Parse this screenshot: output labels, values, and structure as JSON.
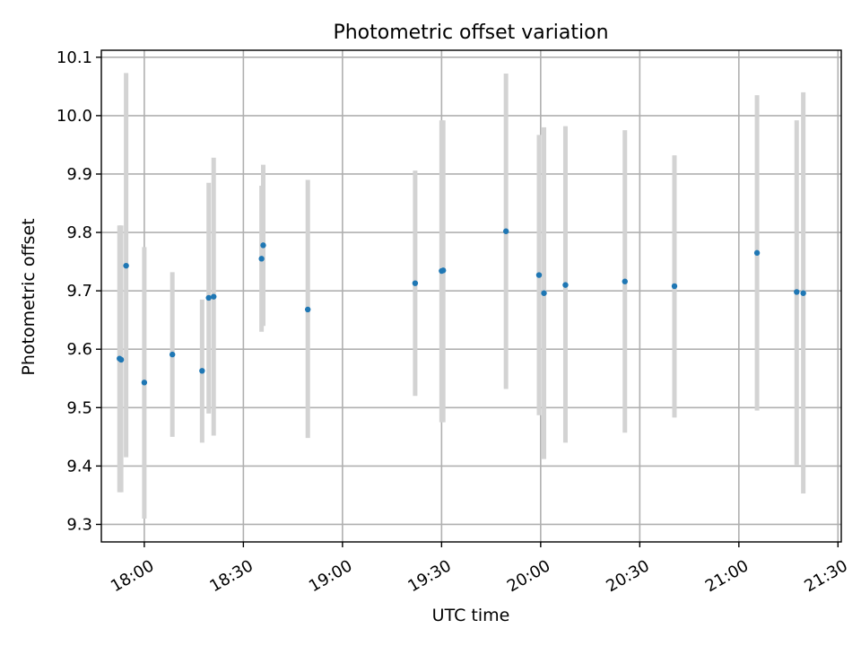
{
  "chart_data": {
    "type": "scatter",
    "title": "Photometric offset variation",
    "xlabel": "UTC time",
    "ylabel": "Photometric offset",
    "xlim": [
      "17:47",
      "21:31"
    ],
    "ylim": [
      9.27,
      10.112
    ],
    "xticks": [
      "18:00",
      "18:30",
      "19:00",
      "19:30",
      "20:00",
      "20:30",
      "21:00",
      "21:30"
    ],
    "yticks": [
      "9.3",
      "9.4",
      "9.5",
      "9.6",
      "9.7",
      "9.8",
      "9.9",
      "10.0",
      "10.1"
    ],
    "grid": true,
    "marker_color": "#1f77b4",
    "errorbar_color": "#d3d3d3",
    "points": [
      {
        "t": "17:54:30",
        "y": 9.743,
        "ylo": 9.415,
        "yhi": 10.073
      },
      {
        "t": "17:52:30",
        "y": 9.584,
        "ylo": 9.355,
        "yhi": 9.812
      },
      {
        "t": "17:53:00",
        "y": 9.582,
        "ylo": 9.355,
        "yhi": 9.812
      },
      {
        "t": "18:00:00",
        "y": 9.543,
        "ylo": 9.31,
        "yhi": 9.775
      },
      {
        "t": "18:08:30",
        "y": 9.591,
        "ylo": 9.45,
        "yhi": 9.732
      },
      {
        "t": "18:17:30",
        "y": 9.563,
        "ylo": 9.44,
        "yhi": 9.685
      },
      {
        "t": "18:19:30",
        "y": 9.688,
        "ylo": 9.49,
        "yhi": 9.885
      },
      {
        "t": "18:21:00",
        "y": 9.69,
        "ylo": 9.452,
        "yhi": 9.928
      },
      {
        "t": "18:35:30",
        "y": 9.755,
        "ylo": 9.63,
        "yhi": 9.88
      },
      {
        "t": "18:36:00",
        "y": 9.778,
        "ylo": 9.64,
        "yhi": 9.916
      },
      {
        "t": "18:49:30",
        "y": 9.668,
        "ylo": 9.448,
        "yhi": 9.89
      },
      {
        "t": "19:22:00",
        "y": 9.713,
        "ylo": 9.52,
        "yhi": 9.906
      },
      {
        "t": "19:30:00",
        "y": 9.734,
        "ylo": 9.475,
        "yhi": 9.992
      },
      {
        "t": "19:30:30",
        "y": 9.735,
        "ylo": 9.475,
        "yhi": 9.992
      },
      {
        "t": "19:49:30",
        "y": 9.802,
        "ylo": 9.532,
        "yhi": 10.072
      },
      {
        "t": "19:59:30",
        "y": 9.727,
        "ylo": 9.487,
        "yhi": 9.967
      },
      {
        "t": "20:01:00",
        "y": 9.696,
        "ylo": 9.412,
        "yhi": 9.98
      },
      {
        "t": "20:07:30",
        "y": 9.71,
        "ylo": 9.44,
        "yhi": 9.982
      },
      {
        "t": "20:25:30",
        "y": 9.716,
        "ylo": 9.457,
        "yhi": 9.975
      },
      {
        "t": "20:40:30",
        "y": 9.708,
        "ylo": 9.483,
        "yhi": 9.932
      },
      {
        "t": "21:05:30",
        "y": 9.765,
        "ylo": 9.495,
        "yhi": 10.035
      },
      {
        "t": "21:17:30",
        "y": 9.698,
        "ylo": 9.402,
        "yhi": 9.992
      },
      {
        "t": "21:19:30",
        "y": 9.696,
        "ylo": 9.353,
        "yhi": 10.04
      }
    ]
  }
}
